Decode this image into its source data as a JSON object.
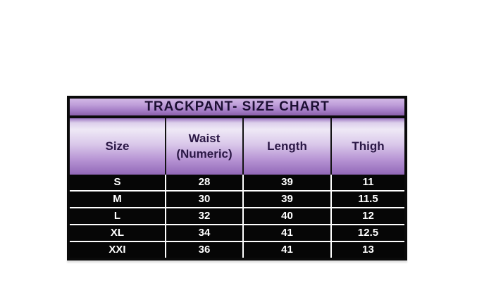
{
  "table": {
    "title": "TRACKPANT- SIZE CHART",
    "header": {
      "cells": [
        {
          "line1": "Size",
          "line2": ""
        },
        {
          "line1": "Waist",
          "line2": "(Numeric)"
        },
        {
          "line1": "Length",
          "line2": ""
        },
        {
          "line1": "Thigh",
          "line2": ""
        }
      ]
    },
    "rows": [
      [
        "S",
        "28",
        "39",
        "11"
      ],
      [
        "M",
        "30",
        "39",
        "11.5"
      ],
      [
        "L",
        "32",
        "40",
        "12"
      ],
      [
        "XL",
        "34",
        "41",
        "12.5"
      ],
      [
        "XXI",
        "36",
        "41",
        "13"
      ]
    ]
  },
  "chart_data": {
    "type": "table",
    "title": "TRACKPANT- SIZE CHART",
    "columns": [
      "Size",
      "Waist (Numeric)",
      "Length",
      "Thigh"
    ],
    "rows": [
      [
        "S",
        28,
        39,
        11
      ],
      [
        "M",
        30,
        39,
        11.5
      ],
      [
        "L",
        32,
        40,
        12
      ],
      [
        "XL",
        34,
        41,
        12.5
      ],
      [
        "XXI",
        36,
        41,
        13
      ]
    ]
  },
  "colors": {
    "page_background": "#ffffff",
    "border": "#0a0a0a",
    "title_text": "#1c0f33",
    "header_text": "#2a1745",
    "purple_light": "#efe9f6",
    "purple_dark": "#8a60ab",
    "row_background": "#060606",
    "row_text": "#ffffff",
    "row_separator": "#ffffff"
  }
}
